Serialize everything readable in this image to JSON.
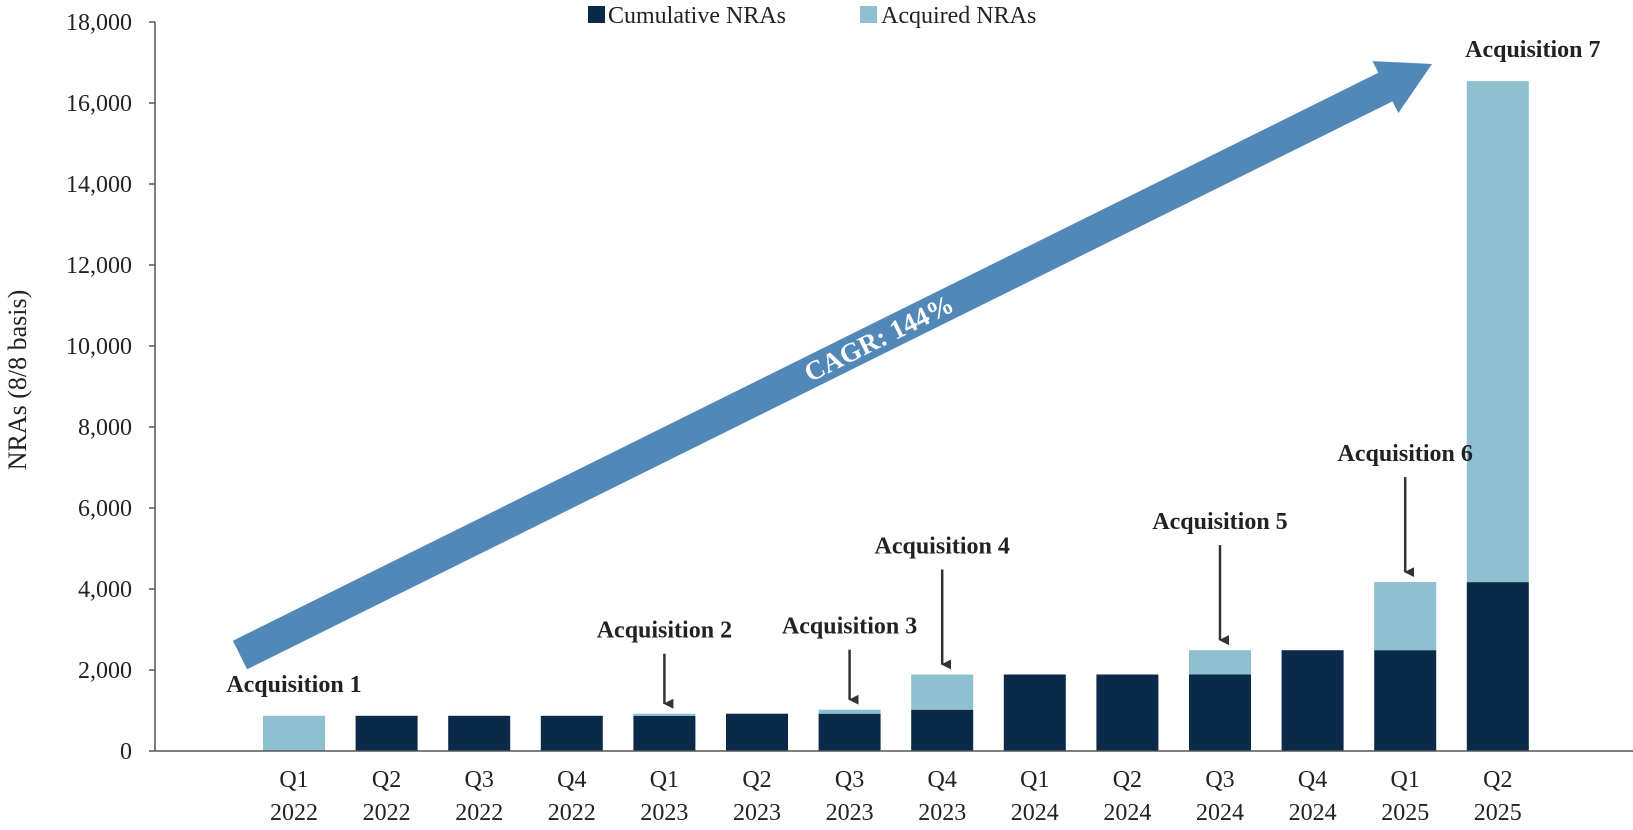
{
  "chart_data": {
    "type": "bar",
    "stacked": true,
    "title": "",
    "xlabel": "",
    "ylabel": "NRAs (8/8 basis)",
    "ylim": [
      0,
      18000
    ],
    "yticks": [
      0,
      2000,
      4000,
      6000,
      8000,
      10000,
      12000,
      14000,
      16000,
      18000
    ],
    "ytick_labels": [
      "0",
      "2,000",
      "4,000",
      "6,000",
      "8,000",
      "10,000",
      "12,000",
      "14,000",
      "16,000",
      "18,000"
    ],
    "grid": false,
    "legend_position": "top-center",
    "categories": [
      {
        "q": "Q1",
        "y": "2022"
      },
      {
        "q": "Q2",
        "y": "2022"
      },
      {
        "q": "Q3",
        "y": "2022"
      },
      {
        "q": "Q4",
        "y": "2022"
      },
      {
        "q": "Q1",
        "y": "2023"
      },
      {
        "q": "Q2",
        "y": "2023"
      },
      {
        "q": "Q3",
        "y": "2023"
      },
      {
        "q": "Q4",
        "y": "2023"
      },
      {
        "q": "Q1",
        "y": "2024"
      },
      {
        "q": "Q2",
        "y": "2024"
      },
      {
        "q": "Q3",
        "y": "2024"
      },
      {
        "q": "Q4",
        "y": "2024"
      },
      {
        "q": "Q1",
        "y": "2025"
      },
      {
        "q": "Q2",
        "y": "2025"
      }
    ],
    "series": [
      {
        "name": "Cumulative NRAs",
        "color": "#0b2a4a",
        "values": [
          0,
          870,
          870,
          870,
          870,
          920,
          920,
          1020,
          1890,
          1890,
          1890,
          2490,
          2490,
          4170
        ]
      },
      {
        "name": "Acquired NRAs",
        "color": "#8ec0cf",
        "values": [
          870,
          0,
          0,
          0,
          50,
          0,
          100,
          870,
          0,
          0,
          600,
          0,
          1680,
          12370
        ]
      }
    ],
    "annotations": [
      {
        "text": "Acquisition 1",
        "category_index": 0,
        "arrow": false
      },
      {
        "text": "Acquisition 2",
        "category_index": 4,
        "arrow": true
      },
      {
        "text": "Acquisition 3",
        "category_index": 6,
        "arrow": true
      },
      {
        "text": "Acquisition 4",
        "category_index": 7,
        "arrow": true
      },
      {
        "text": "Acquisition 5",
        "category_index": 10,
        "arrow": true
      },
      {
        "text": "Acquisition 6",
        "category_index": 12,
        "arrow": true
      },
      {
        "text": "Acquisition 7",
        "category_index": 13,
        "arrow": false
      }
    ],
    "trend_arrow": {
      "label": "CAGR: 144%",
      "color": "#5288b8"
    }
  }
}
